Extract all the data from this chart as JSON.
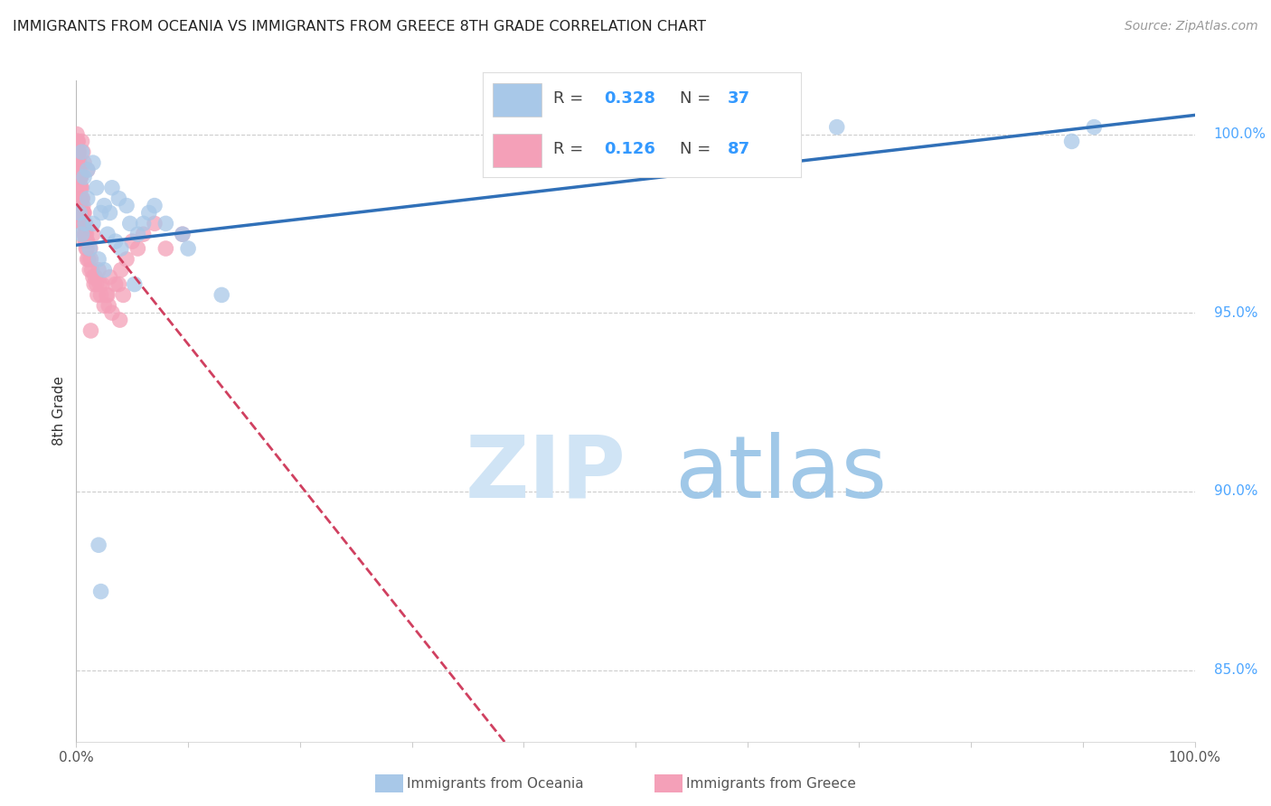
{
  "title": "IMMIGRANTS FROM OCEANIA VS IMMIGRANTS FROM GREECE 8TH GRADE CORRELATION CHART",
  "source": "Source: ZipAtlas.com",
  "ylabel": "8th Grade",
  "R_blue": 0.328,
  "N_blue": 37,
  "R_pink": 0.126,
  "N_pink": 87,
  "blue_color": "#a8c8e8",
  "pink_color": "#f4a0b8",
  "trend_blue_color": "#3070b8",
  "trend_pink_color": "#d04060",
  "background_color": "#ffffff",
  "legend_blue_label": "Immigrants from Oceania",
  "legend_pink_label": "Immigrants from Greece",
  "blue_points_x": [
    0.3,
    0.5,
    0.5,
    0.7,
    0.8,
    1.0,
    1.0,
    1.2,
    1.5,
    1.5,
    1.8,
    2.0,
    2.2,
    2.5,
    2.8,
    3.0,
    3.2,
    3.5,
    3.8,
    4.0,
    4.5,
    4.8,
    5.2,
    5.5,
    6.0,
    6.5,
    7.0,
    8.0,
    9.5,
    10.0,
    13.0,
    2.0,
    2.2,
    2.5,
    68.0,
    89.0,
    91.0
  ],
  "blue_points_y": [
    97.8,
    97.2,
    99.5,
    98.8,
    97.5,
    99.0,
    98.2,
    96.8,
    99.2,
    97.5,
    98.5,
    96.5,
    97.8,
    98.0,
    97.2,
    97.8,
    98.5,
    97.0,
    98.2,
    96.8,
    98.0,
    97.5,
    95.8,
    97.2,
    97.5,
    97.8,
    98.0,
    97.5,
    97.2,
    96.8,
    95.5,
    88.5,
    87.2,
    96.2,
    100.2,
    99.8,
    100.2
  ],
  "pink_points_x": [
    0.05,
    0.08,
    0.1,
    0.12,
    0.15,
    0.18,
    0.2,
    0.22,
    0.25,
    0.28,
    0.3,
    0.32,
    0.35,
    0.38,
    0.4,
    0.42,
    0.45,
    0.48,
    0.5,
    0.52,
    0.55,
    0.58,
    0.6,
    0.62,
    0.65,
    0.68,
    0.7,
    0.72,
    0.75,
    0.78,
    0.8,
    0.82,
    0.85,
    0.88,
    0.9,
    0.92,
    0.95,
    0.98,
    1.0,
    1.1,
    1.2,
    1.3,
    1.4,
    1.5,
    1.6,
    1.7,
    1.8,
    1.9,
    2.0,
    2.1,
    2.2,
    2.3,
    2.5,
    2.7,
    2.9,
    3.0,
    3.2,
    3.5,
    4.0,
    4.5,
    5.0,
    5.5,
    6.0,
    7.0,
    8.0,
    9.5,
    2.8,
    3.8,
    3.9,
    1.3,
    0.5,
    0.6,
    0.7,
    0.55,
    0.65,
    0.25,
    0.35,
    4.2,
    0.45,
    1.0,
    1.5,
    0.15,
    0.2,
    0.3,
    0.4,
    0.75,
    1.25
  ],
  "pink_points_y": [
    100.0,
    99.8,
    99.8,
    99.5,
    99.5,
    99.2,
    99.5,
    99.2,
    99.0,
    98.8,
    99.0,
    98.8,
    98.5,
    98.2,
    98.8,
    98.5,
    98.0,
    97.8,
    98.5,
    98.2,
    97.8,
    97.5,
    98.0,
    97.8,
    97.5,
    97.2,
    97.8,
    97.5,
    97.2,
    97.0,
    97.5,
    97.2,
    97.0,
    96.8,
    97.2,
    97.0,
    96.8,
    96.5,
    97.0,
    96.5,
    96.2,
    96.5,
    96.2,
    96.0,
    95.8,
    96.0,
    95.8,
    95.5,
    96.2,
    95.8,
    95.5,
    95.8,
    95.2,
    95.5,
    95.2,
    96.0,
    95.0,
    95.8,
    96.2,
    96.5,
    97.0,
    96.8,
    97.2,
    97.5,
    96.8,
    97.2,
    95.5,
    95.8,
    94.8,
    94.5,
    99.8,
    99.5,
    99.2,
    98.2,
    97.8,
    99.5,
    98.8,
    95.5,
    98.2,
    99.0,
    97.2,
    99.8,
    99.5,
    99.2,
    98.8,
    97.5,
    96.8
  ]
}
